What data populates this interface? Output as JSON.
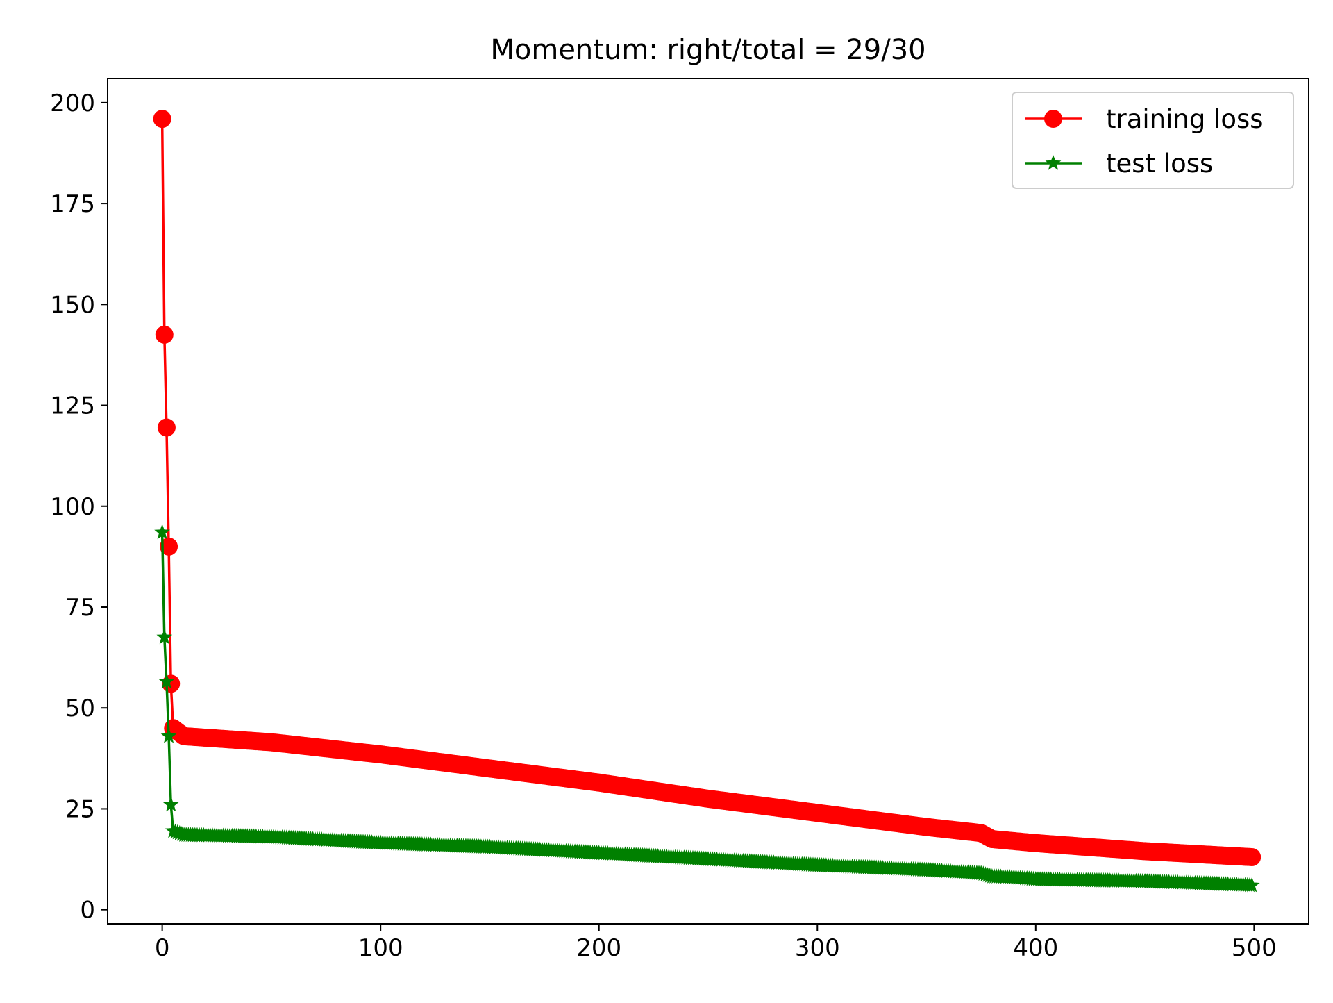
{
  "chart_data": {
    "type": "line",
    "title": "Momentum: right/total = 29/30",
    "xlabel": "",
    "ylabel": "",
    "xlim": [
      -25,
      525
    ],
    "ylim": [
      -3.5,
      206
    ],
    "x_ticks": [
      0,
      100,
      200,
      300,
      400,
      500
    ],
    "y_ticks": [
      0,
      25,
      50,
      75,
      100,
      125,
      150,
      175,
      200
    ],
    "grid": false,
    "legend_position": "top-right",
    "series": [
      {
        "name": "training loss",
        "color": "#ff0000",
        "marker": "circle",
        "x": [
          0,
          1,
          2,
          3,
          4,
          5,
          10,
          50,
          100,
          150,
          200,
          250,
          300,
          350,
          375,
          380,
          390,
          400,
          450,
          500
        ],
        "y": [
          196,
          142.5,
          119.5,
          90,
          56,
          45,
          43,
          41.5,
          38.5,
          35,
          31.5,
          27.5,
          24,
          20.5,
          19,
          17.5,
          17,
          16.5,
          14.5,
          13
        ]
      },
      {
        "name": "test loss",
        "color": "#008000",
        "marker": "star",
        "x": [
          0,
          1,
          2,
          3,
          4,
          5,
          10,
          50,
          100,
          150,
          200,
          250,
          300,
          350,
          375,
          380,
          390,
          400,
          450,
          500
        ],
        "y": [
          93.5,
          67.5,
          56.5,
          43,
          26,
          19.5,
          18.5,
          18,
          16.5,
          15.5,
          14,
          12.5,
          11,
          9.8,
          9.0,
          8.2,
          8,
          7.5,
          7,
          6
        ]
      }
    ]
  }
}
